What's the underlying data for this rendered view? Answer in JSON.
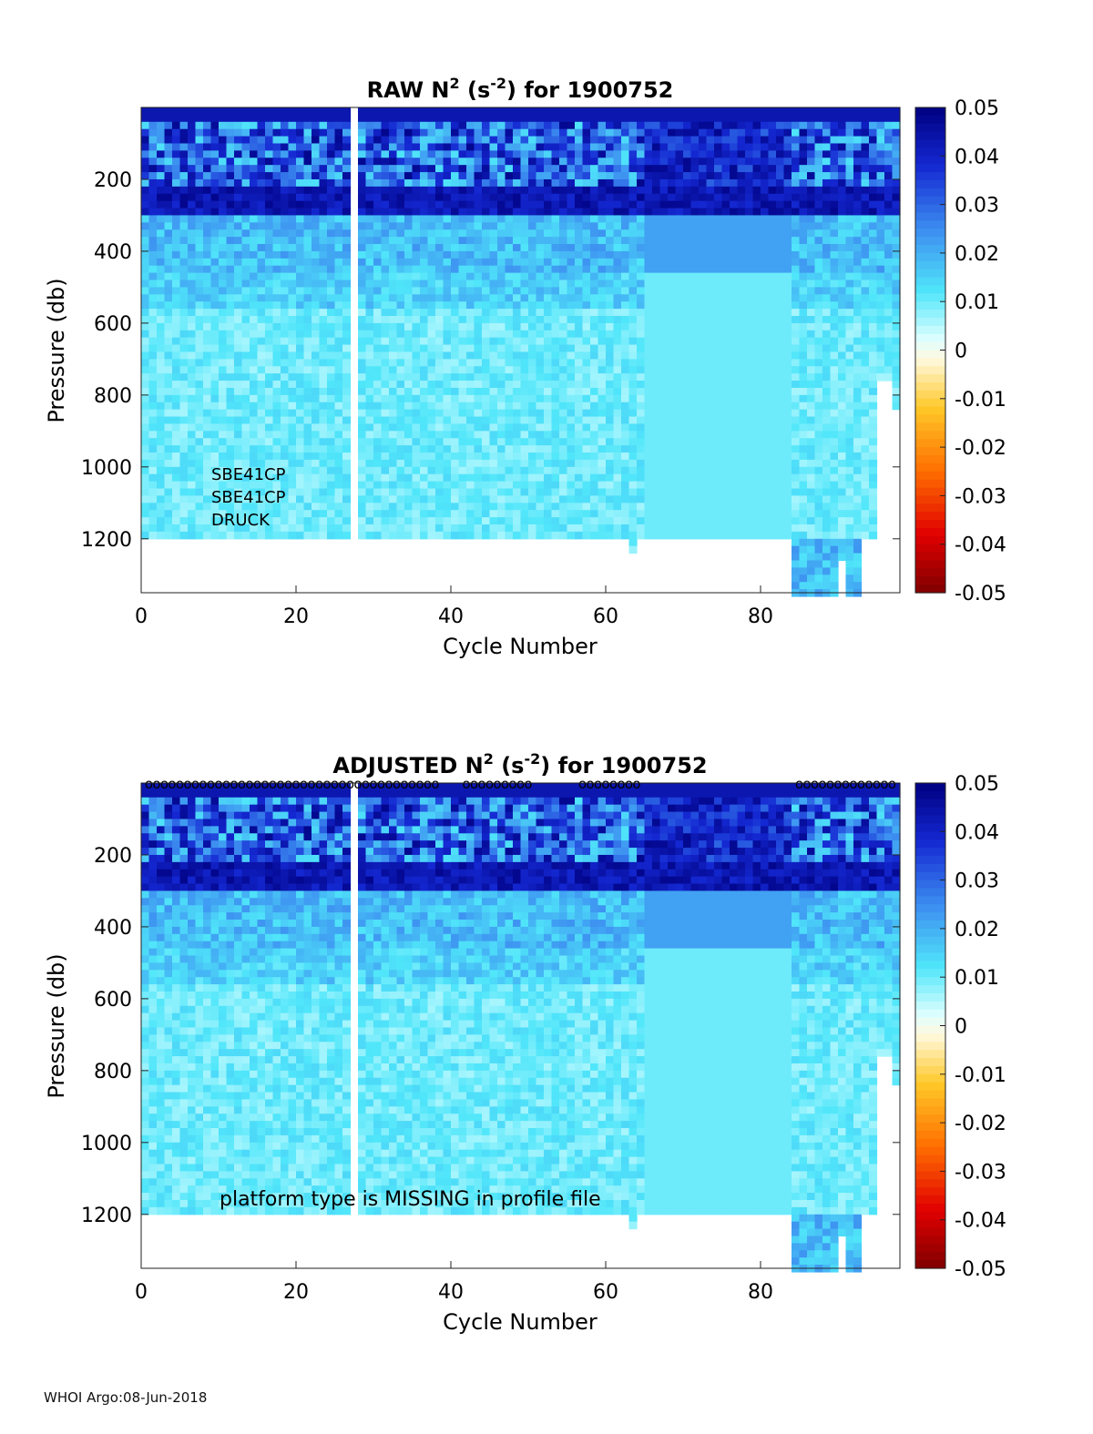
{
  "chart_data": [
    {
      "type": "heatmap",
      "title_prefix": "RAW N",
      "title_sup1": "2",
      "title_mid": " (s",
      "title_sup2": "-2",
      "title_suffix": ") for 1900752",
      "xlabel": "Cycle Number",
      "ylabel": "Pressure (db)",
      "xlim": [
        0,
        98
      ],
      "ylim": [
        1350,
        0
      ],
      "xticks": [
        "0",
        "20",
        "40",
        "60",
        "80"
      ],
      "yticks": [
        "200",
        "400",
        "600",
        "800",
        "1000",
        "1200"
      ],
      "colorbar": {
        "range": [
          -0.05,
          0.05
        ],
        "ticks": [
          "0.05",
          "0.04",
          "0.03",
          "0.02",
          "0.01",
          "0",
          "-0.01",
          "-0.02",
          "-0.03",
          "-0.04",
          "-0.05"
        ]
      },
      "annotations": [
        "SBE41CP",
        "SBE41CP",
        "DRUCK"
      ],
      "flag_markers": false
    },
    {
      "type": "heatmap",
      "title_prefix": "ADJUSTED N",
      "title_sup1": "2",
      "title_mid": " (s",
      "title_sup2": "-2",
      "title_suffix": ") for 1900752",
      "xlabel": "Cycle Number",
      "ylabel": "Pressure (db)",
      "xlim": [
        0,
        98
      ],
      "ylim": [
        1350,
        0
      ],
      "xticks": [
        "0",
        "20",
        "40",
        "60",
        "80"
      ],
      "yticks": [
        "200",
        "400",
        "600",
        "800",
        "1000",
        "1200"
      ],
      "colorbar": {
        "range": [
          -0.05,
          0.05
        ],
        "ticks": [
          "0.05",
          "0.04",
          "0.03",
          "0.02",
          "0.01",
          "0",
          "-0.01",
          "-0.02",
          "-0.03",
          "-0.04",
          "-0.05"
        ]
      },
      "annotations": [
        "platform type is MISSING in profile file"
      ],
      "flag_markers": true,
      "flag_marker_label": "o"
    }
  ],
  "footer": "WHOI Argo:08-Jun-2018"
}
